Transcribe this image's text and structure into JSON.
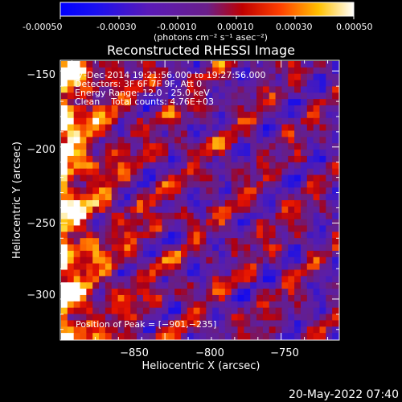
{
  "colorbar": {
    "tick_labels": [
      "-0.00050",
      "-0.00030",
      "-0.00010",
      "0.00010",
      "0.00030",
      "0.00050"
    ],
    "unit_label": "(photons cm⁻² s⁻¹ asec⁻²)",
    "range": [
      -0.0005,
      0.0005
    ],
    "colors": [
      "#0000ff",
      "#7a1fa2",
      "#ff0000",
      "#ffff00",
      "#ffffff"
    ]
  },
  "chart_data": {
    "type": "heatmap",
    "title": "Reconstructed RHESSI Image",
    "xlabel": "Heliocentric X (arcsec)",
    "ylabel": "Heliocentric Y (arcsec)",
    "xlim": [
      -895,
      -775
    ],
    "ylim": [
      -327,
      -143
    ],
    "x_ticks": [
      -850,
      -800,
      -750
    ],
    "y_ticks": [
      -150,
      -200,
      -250,
      -300
    ],
    "x_tick_labels": [
      "−850",
      "−800",
      "−750"
    ],
    "y_tick_labels": [
      "−150",
      "−200",
      "−250",
      "−300"
    ],
    "annotations": [
      "7-Dec-2014 19:21:56.000 to 19:27:56.000",
      "Detectors: 3F 6F 7F 9F, Att 0",
      "Energy Range: 12.0 - 25.0 keV",
      "Clean    Total counts: 4.76E+03"
    ],
    "peak_label": "Position of Peak = [−901,−235]",
    "peak": [
      -901,
      -235
    ]
  },
  "timestamp": "20-May-2022 07:40"
}
